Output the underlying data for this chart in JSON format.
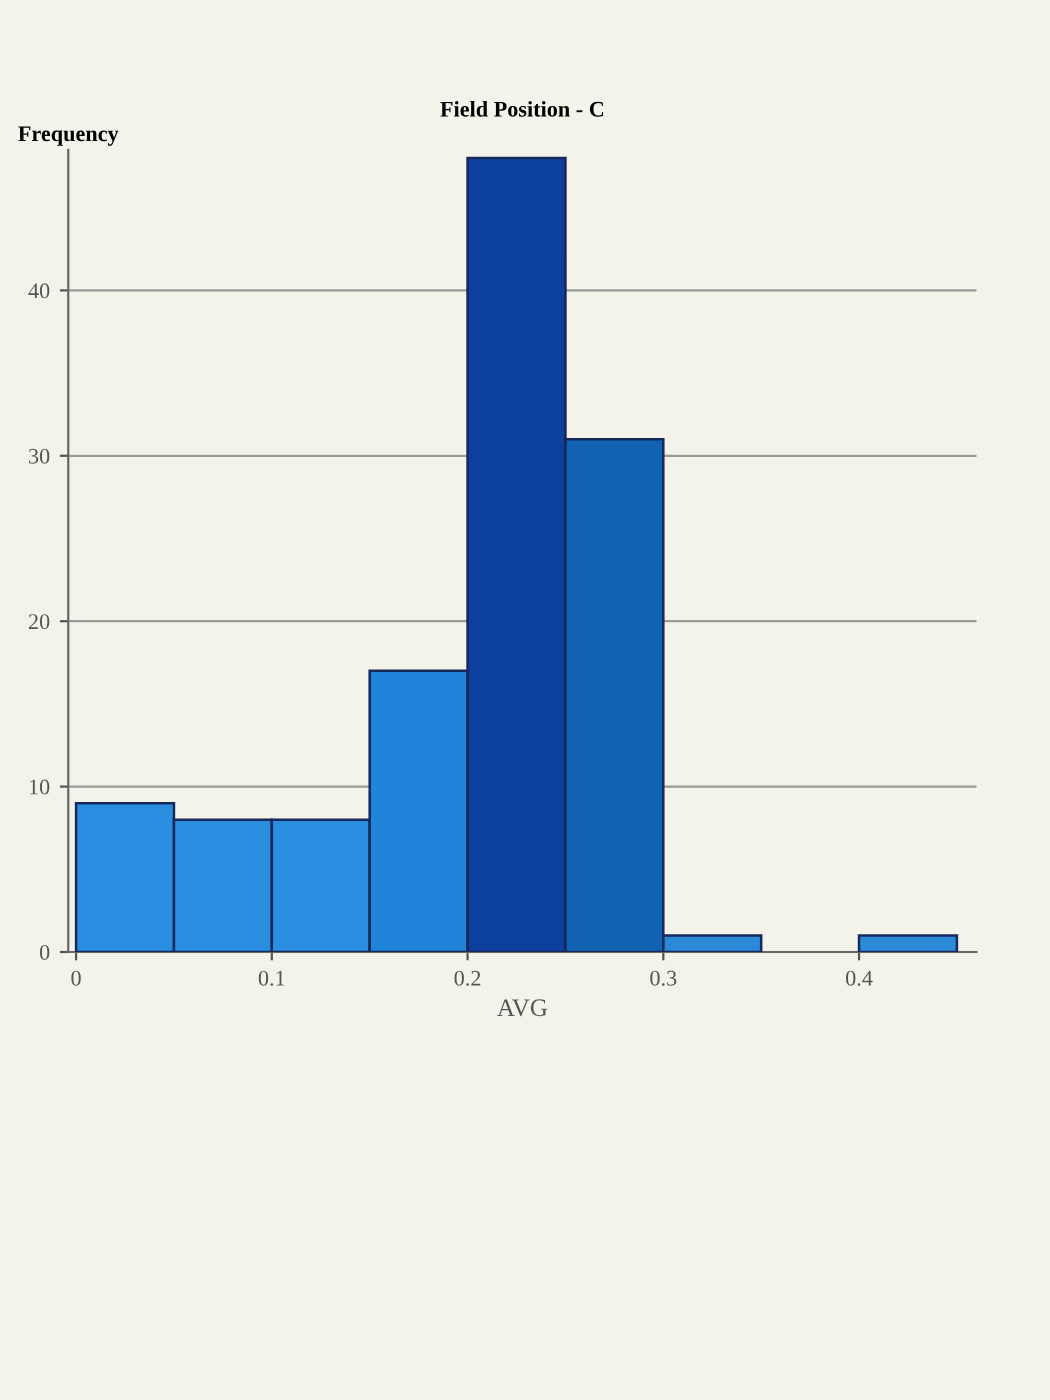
{
  "chart_data": {
    "type": "histogram",
    "title": "Field Position - C",
    "xlabel": "AVG",
    "ylabel": "Frequency",
    "bins": [
      0,
      0.05,
      0.1,
      0.15,
      0.2,
      0.25,
      0.3,
      0.35,
      0.4,
      0.45
    ],
    "values": [
      9,
      8,
      8,
      17,
      48,
      31,
      1,
      0,
      1
    ],
    "colors": [
      "#2a8ee0",
      "#2a8ee0",
      "#2a8ee0",
      "#1f84da",
      "#0c3f9e",
      "#1262b4",
      "#2a8ad8",
      null,
      "#2a8ad8"
    ],
    "xlim": [
      -0.004,
      0.46
    ],
    "ylim": [
      0,
      48.5
    ],
    "xticks": [
      0,
      0.1,
      0.2,
      0.3,
      0.4
    ],
    "yticks": [
      0,
      10,
      20,
      30,
      40
    ],
    "grid": "y"
  }
}
